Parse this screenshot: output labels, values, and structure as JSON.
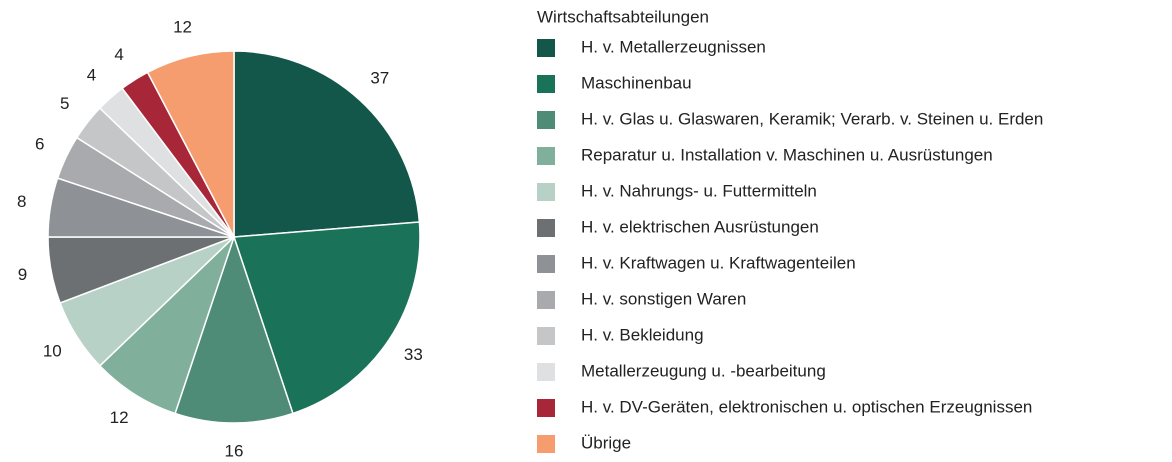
{
  "chart_data": {
    "type": "pie",
    "legend_title": "Wirtschaftsabteilungen",
    "categories": [
      "H. v. Metallerzeugnissen",
      "Maschinenbau",
      "H. v. Glas u. Glaswaren, Keramik; Verarb. v. Steinen u. Erden",
      "Reparatur u. Installation v. Maschinen u. Ausrüstungen",
      "H. v. Nahrungs- u. Futtermitteln",
      "H. v. elektrischen Ausrüstungen",
      "H. v. Kraftwagen u. Kraftwagenteilen",
      "H. v. sonstigen Waren",
      "H. v. Bekleidung",
      "Metallerzeugung u. -bearbeitung",
      "H. v. DV-Geräten, elektronischen u. optischen Erzeugnissen",
      "Übrige"
    ],
    "values": [
      37,
      33,
      16,
      12,
      10,
      9,
      8,
      6,
      5,
      4,
      4,
      12
    ],
    "colors": [
      "#12574a",
      "#1a7259",
      "#4e8c78",
      "#80b09c",
      "#b7d1c6",
      "#6d7073",
      "#8e9196",
      "#a8aaae",
      "#c4c6c8",
      "#dfe0e1",
      "#a72638",
      "#f59d6e"
    ],
    "legend": "right"
  }
}
